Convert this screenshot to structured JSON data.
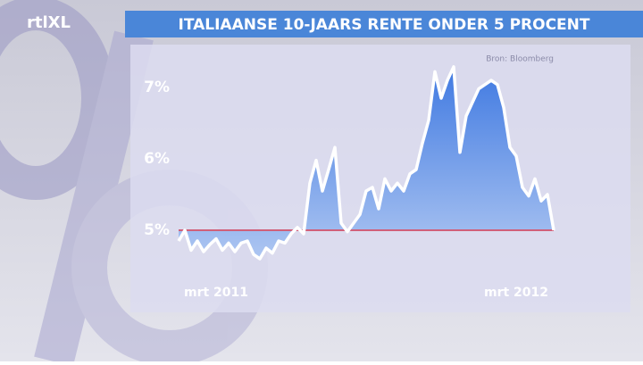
{
  "chart_data": {
    "type": "area",
    "title": "ITALIAANSE 10-JAARS RENTE ONDER 5 PROCENT",
    "source": "Bron: Bloomberg",
    "logo": "rtlXL",
    "categories": [
      null,
      null,
      null,
      null,
      null,
      null,
      "mrt 2011",
      null,
      null,
      null,
      null,
      null,
      null,
      null,
      null,
      null,
      null,
      null,
      null,
      null,
      null,
      null,
      null,
      null,
      null,
      null,
      null,
      null,
      null,
      null,
      null,
      null,
      null,
      null,
      null,
      null,
      null,
      null,
      null,
      null,
      null,
      null,
      null,
      null,
      null,
      null,
      null,
      null,
      null,
      null,
      null,
      null,
      null,
      null,
      "mrt 2012",
      null,
      null,
      null,
      null,
      null,
      null
    ],
    "values": [
      4.85,
      5.0,
      4.72,
      4.85,
      4.7,
      4.8,
      4.88,
      4.72,
      4.82,
      4.7,
      4.82,
      4.85,
      4.66,
      4.6,
      4.75,
      4.68,
      4.85,
      4.82,
      4.95,
      5.04,
      4.95,
      5.66,
      5.98,
      5.55,
      5.85,
      6.16,
      5.1,
      4.98,
      5.1,
      5.22,
      5.55,
      5.6,
      5.3,
      5.72,
      5.55,
      5.66,
      5.55,
      5.79,
      5.85,
      6.22,
      6.54,
      7.22,
      6.85,
      7.1,
      7.29,
      6.09,
      6.6,
      6.79,
      6.98,
      7.04,
      7.1,
      7.04,
      6.72,
      6.16,
      6.04,
      5.6,
      5.48,
      5.72,
      5.41,
      5.5,
      5.0
    ],
    "color": "#ffffff",
    "fill": "#3f7fe0",
    "hline": 5,
    "hline_color": "#d0607a",
    "ylim": [
      4.5,
      7.5
    ],
    "yticks": [
      {
        "value": 5,
        "label": "5%"
      },
      {
        "value": 6,
        "label": "6%"
      },
      {
        "value": 7,
        "label": "7%"
      }
    ]
  }
}
